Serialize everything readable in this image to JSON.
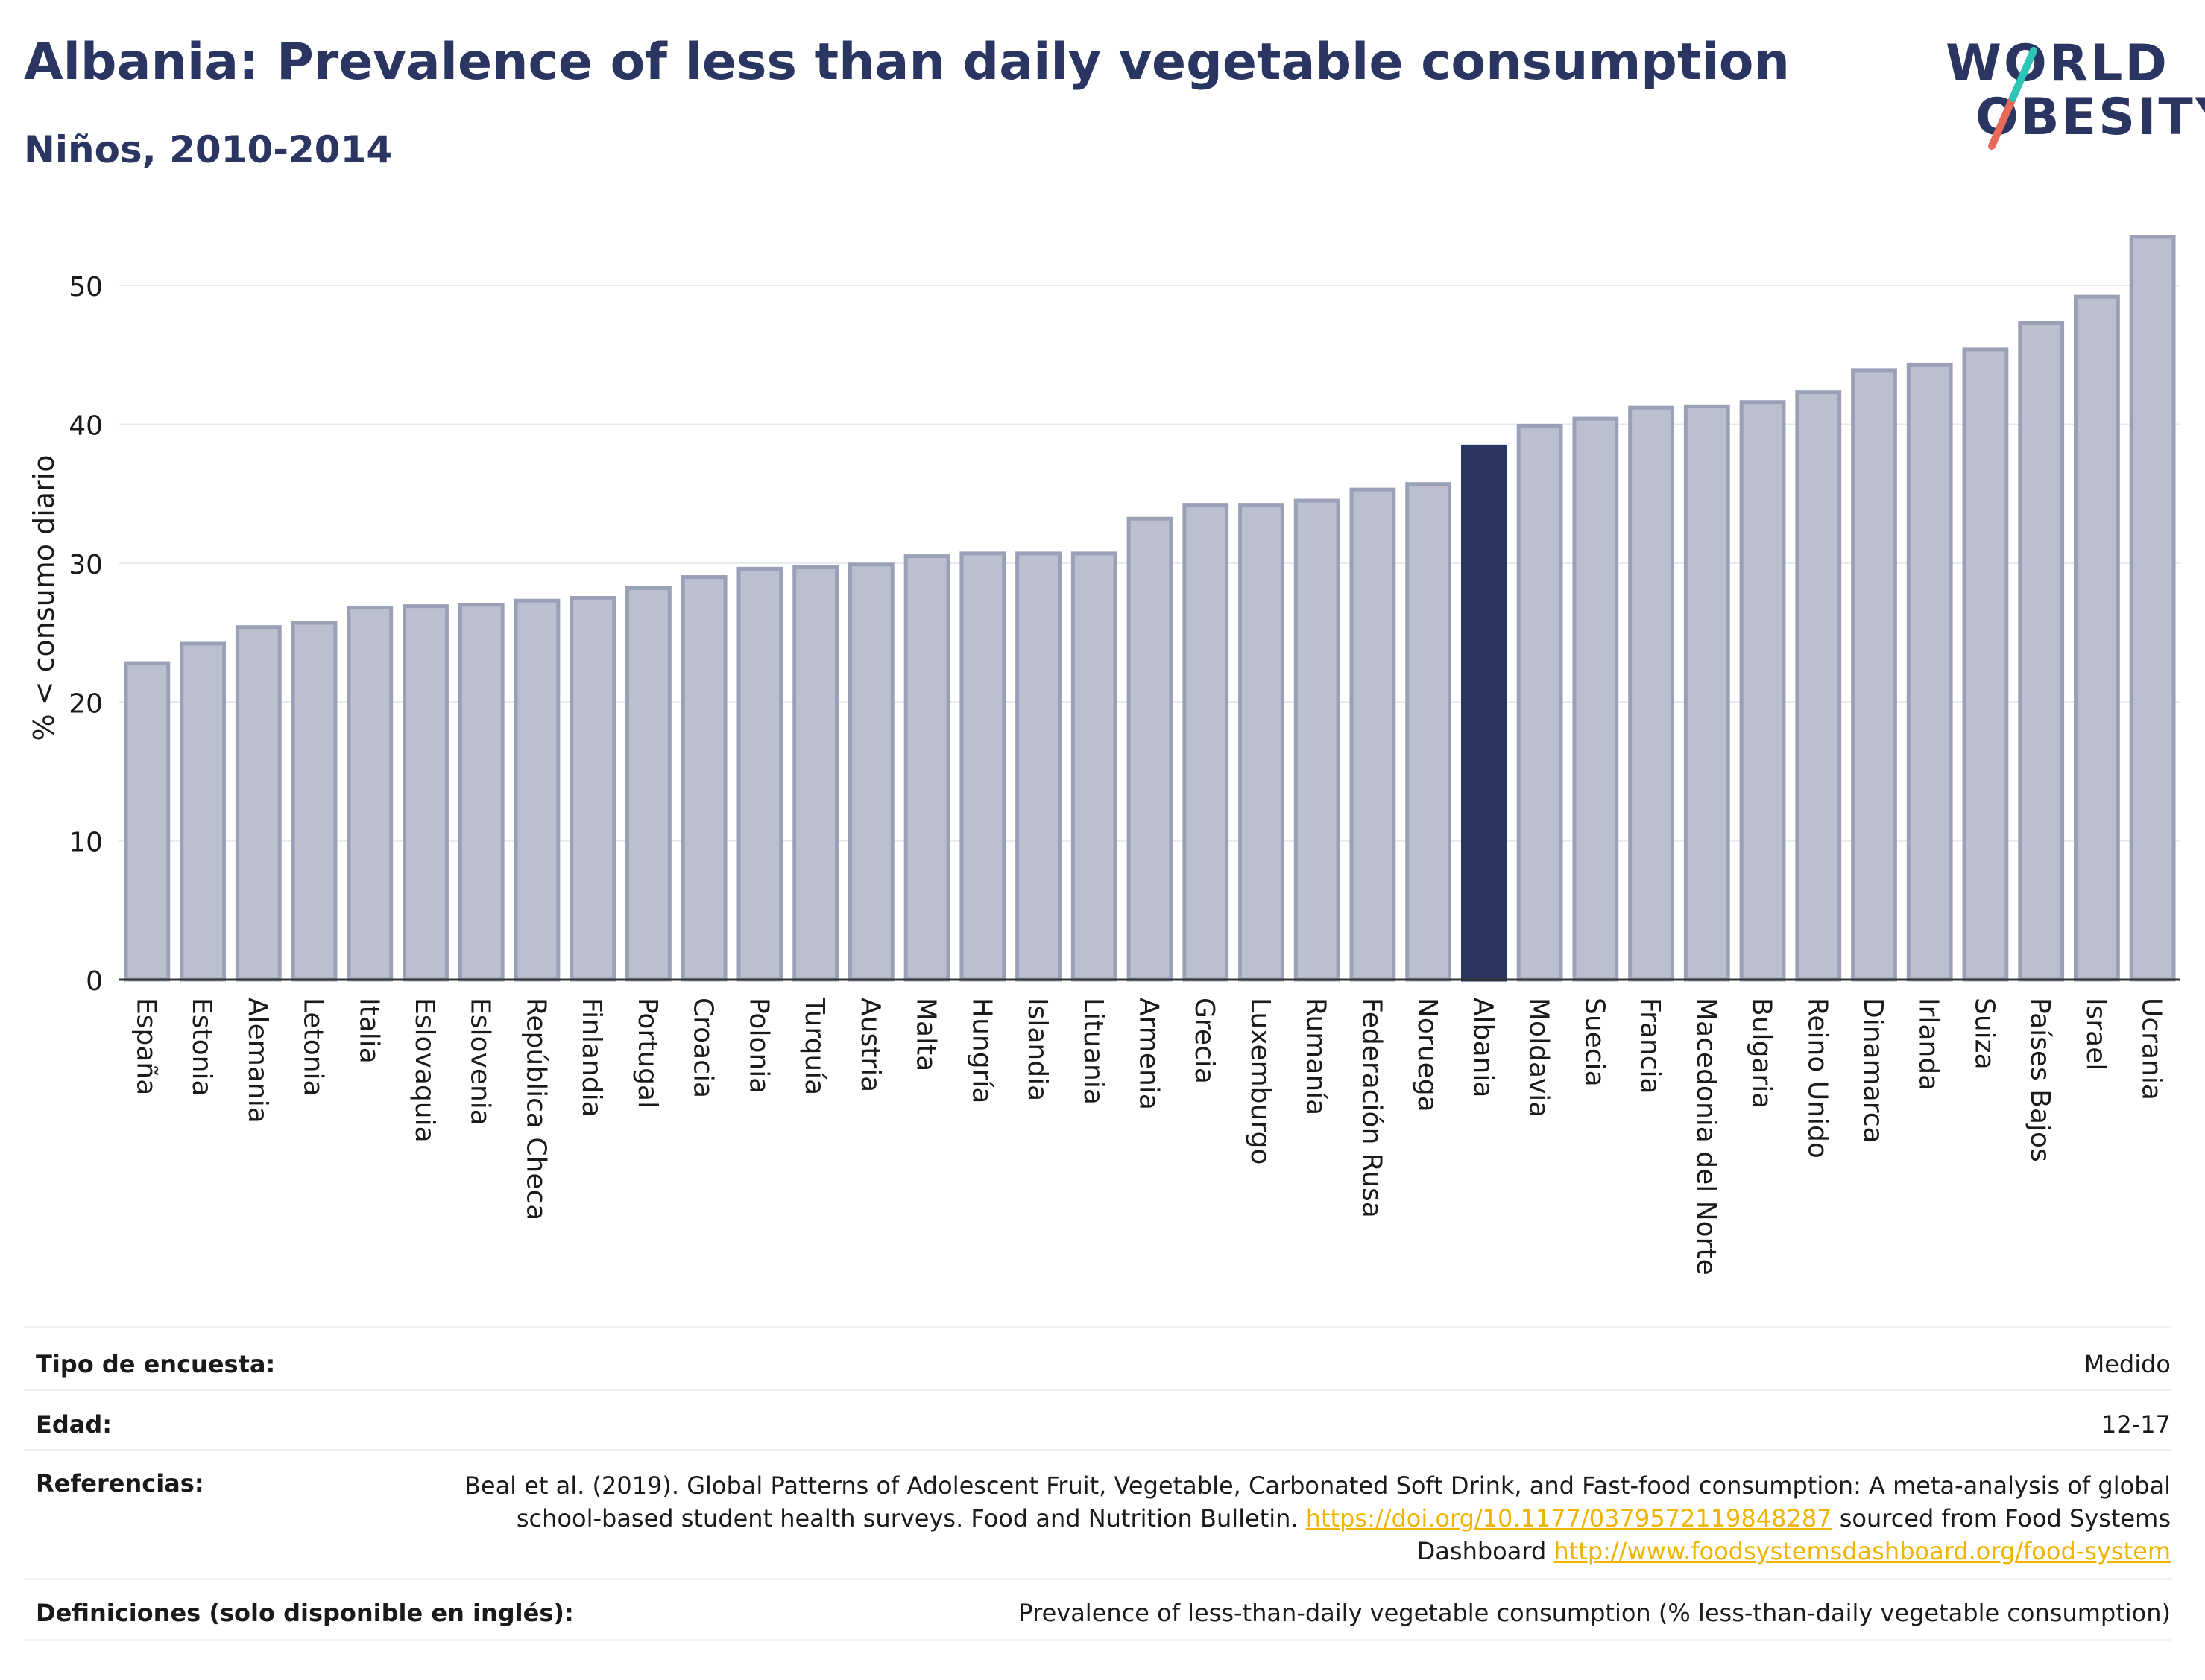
{
  "header": {
    "title": "Albania: Prevalence of less than daily vegetable consumption",
    "subtitle": "Niños, 2010-2014",
    "logo_line1": "WORLD",
    "logo_line2": "OBESITY"
  },
  "colors": {
    "bar": "#bcc0ce",
    "bar_border": "#9aa0b8",
    "highlight": "#2b3561",
    "title": "#2b3561",
    "logo_slash_teal": "#2ec4b6",
    "logo_slash_red": "#e8685a",
    "link": "#f0b400"
  },
  "chart_data": {
    "type": "bar",
    "ylabel": "% < consumo diario",
    "xlabel": "",
    "ylim": [
      0,
      55
    ],
    "yticks": [
      0,
      10,
      20,
      30,
      40,
      50
    ],
    "grid": true,
    "highlight": "Albania",
    "categories": [
      "España",
      "Estonia",
      "Alemania",
      "Letonia",
      "Italia",
      "Eslovaquia",
      "Eslovenia",
      "República Checa",
      "Finlandia",
      "Portugal",
      "Croacia",
      "Polonia",
      "Turquía",
      "Austria",
      "Malta",
      "Hungría",
      "Islandia",
      "Lituania",
      "Armenia",
      "Grecia",
      "Luxemburgo",
      "Rumanía",
      "Federación Rusa",
      "Noruega",
      "Albania",
      "Moldavia",
      "Suecia",
      "Francia",
      "Macedonia del Norte",
      "Bulgaria",
      "Reino Unido",
      "Dinamarca",
      "Irlanda",
      "Suiza",
      "Países Bajos",
      "Israel",
      "Ucrania"
    ],
    "values": [
      22.8,
      24.2,
      25.4,
      25.7,
      26.8,
      26.9,
      27.0,
      27.3,
      27.5,
      28.2,
      29.0,
      29.6,
      29.7,
      29.9,
      30.5,
      30.7,
      30.7,
      30.7,
      33.2,
      34.2,
      34.2,
      34.5,
      35.3,
      35.7,
      38.4,
      39.9,
      40.4,
      41.2,
      41.3,
      41.6,
      42.3,
      43.9,
      44.3,
      45.4,
      47.3,
      49.2,
      53.5
    ]
  },
  "meta": {
    "survey_type_label": "Tipo de encuesta:",
    "survey_type_value": "Medido",
    "age_label": "Edad:",
    "age_value": "12-17",
    "references_label": "Referencias:",
    "references_text_1": "Beal et al. (2019). Global Patterns of Adolescent Fruit, Vegetable, Carbonated Soft Drink, and Fast-food consumption: A meta-analysis of global school-based student health surveys. Food and Nutrition Bulletin.",
    "references_link_1": "https://doi.org/10.1177/0379572119848287",
    "references_text_2": "sourced from Food Systems Dashboard",
    "references_link_2": "http://www.foodsystemsdashboard.org/food-system",
    "definitions_label": "Definiciones (solo disponible en inglés):",
    "definitions_value": "Prevalence of less-than-daily vegetable consumption (% less-than-daily vegetable consumption)"
  }
}
